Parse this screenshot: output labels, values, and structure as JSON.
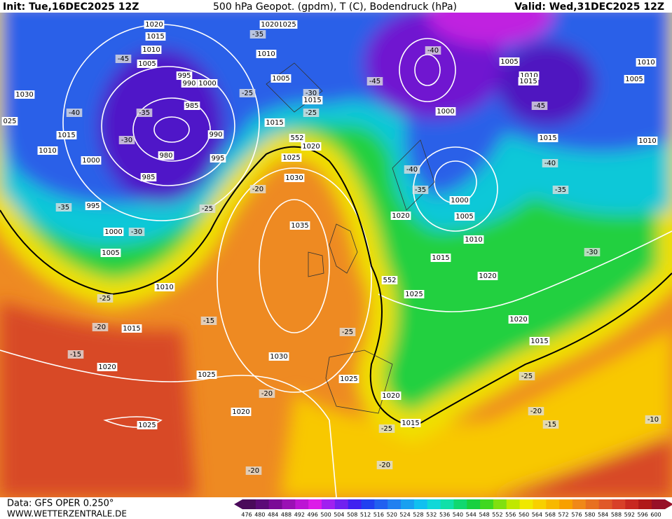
{
  "header": {
    "init": "Init: Tue,16DEC2025 12Z",
    "title": "500 hPa Geopot. (gpdm), T (C), Bodendruck (hPa)",
    "valid": "Valid: Wed,31DEC2025 12Z"
  },
  "footer": {
    "source": "Data: GFS OPER 0.250°",
    "site": "WWW.WETTERZENTRALE.DE"
  },
  "scale": {
    "values": [
      476,
      480,
      484,
      488,
      492,
      496,
      500,
      504,
      508,
      512,
      516,
      520,
      524,
      528,
      532,
      536,
      540,
      544,
      548,
      552,
      556,
      560,
      564,
      568,
      572,
      576,
      580,
      584,
      588,
      592,
      596,
      600
    ],
    "colors": [
      "#4a0a5a",
      "#5c0a78",
      "#7a0a96",
      "#9a10b4",
      "#bc14d4",
      "#dc1ce8",
      "#a020f0",
      "#7020f0",
      "#4020f0",
      "#2040f0",
      "#2060f0",
      "#2080f0",
      "#18a0f0",
      "#10c0f0",
      "#10d8d8",
      "#10e0a8",
      "#10d870",
      "#18d040",
      "#40d820",
      "#80e010",
      "#c0e800",
      "#f0e800",
      "#f8d000",
      "#f8b800",
      "#f8a000",
      "#f08818",
      "#e87020",
      "#e05828",
      "#d84028",
      "#c82820",
      "#b01818",
      "#981028"
    ]
  },
  "labels": [
    "1020",
    "1015",
    "1010",
    "1005",
    "995",
    "990",
    "1000",
    "985",
    "980",
    "985",
    "995",
    "990",
    "1030",
    "1015",
    "1010",
    "1000",
    "995",
    "1000",
    "1005",
    "1010",
    "1015",
    "1020",
    "1025",
    "1025",
    "1020",
    "1030",
    "1035",
    "1030",
    "1025",
    "1020",
    "1015",
    "1005",
    "1015",
    "1010",
    "1025",
    "1020",
    "1000",
    "1005",
    "1010",
    "1015",
    "1015",
    "1010",
    "1005",
    "1010",
    "1000",
    "1005",
    "1010",
    "1020",
    "1015",
    "1020",
    "1025",
    "1020",
    "1015",
    "1020",
    "1015",
    "1025",
    "025",
    "-45",
    "-40",
    "-35",
    "-30",
    "-35",
    "-30",
    "-25",
    "-30",
    "-25",
    "-35",
    "-25",
    "-20",
    "-25",
    "-20",
    "-15",
    "-15",
    "-25",
    "-20",
    "-20",
    "-20",
    "-25",
    "-45",
    "-40",
    "-45",
    "-40",
    "-35",
    "-40",
    "-35",
    "-30",
    "-25",
    "-20",
    "-15",
    "-10",
    "552",
    "552"
  ]
}
